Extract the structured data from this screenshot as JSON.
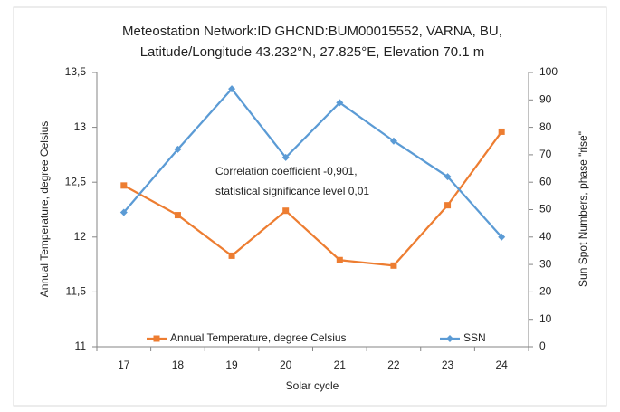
{
  "chart_data": {
    "type": "line",
    "title": [
      "Meteostation Network:ID GHCND:BUM00015552, VARNA, BU,",
      "Latitude/Longitude 43.232°N, 27.825°E, Elevation 70.1 m"
    ],
    "annotation": [
      "Correlation coefficient -0,901,",
      "statistical significance level 0,01"
    ],
    "x_label": "Solar cycle",
    "y_label": "Annual Temperature, degree Celsius",
    "y2_label": "Sun Spot Numbers, phase \"rise\"",
    "categories": [
      "17",
      "18",
      "19",
      "20",
      "21",
      "22",
      "23",
      "24"
    ],
    "series": [
      {
        "name": "Annual Temperature, degree Celsius",
        "color": "#ed7d31",
        "marker": "square",
        "values": [
          12.47,
          12.2,
          11.83,
          12.24,
          11.79,
          11.74,
          12.29,
          12.96
        ]
      },
      {
        "name": "SSN",
        "color": "#5b9bd5",
        "marker": "diamond",
        "axis": "y2",
        "values": [
          49,
          72,
          94,
          69,
          89,
          75,
          62,
          40
        ]
      }
    ],
    "ylim": [
      11,
      13.5
    ],
    "yticks": [
      {
        "value": 11,
        "label": "11"
      },
      {
        "value": 11.5,
        "label": "11,5"
      },
      {
        "value": 12,
        "label": "12"
      },
      {
        "value": 12.5,
        "label": "12,5"
      },
      {
        "value": 13,
        "label": "13"
      },
      {
        "value": 13.5,
        "label": "13,5"
      }
    ],
    "y2lim": [
      0,
      100
    ],
    "y2ticks": [
      0,
      10,
      20,
      30,
      40,
      50,
      60,
      70,
      80,
      90,
      100
    ],
    "grid": false,
    "legend": "bottom"
  }
}
